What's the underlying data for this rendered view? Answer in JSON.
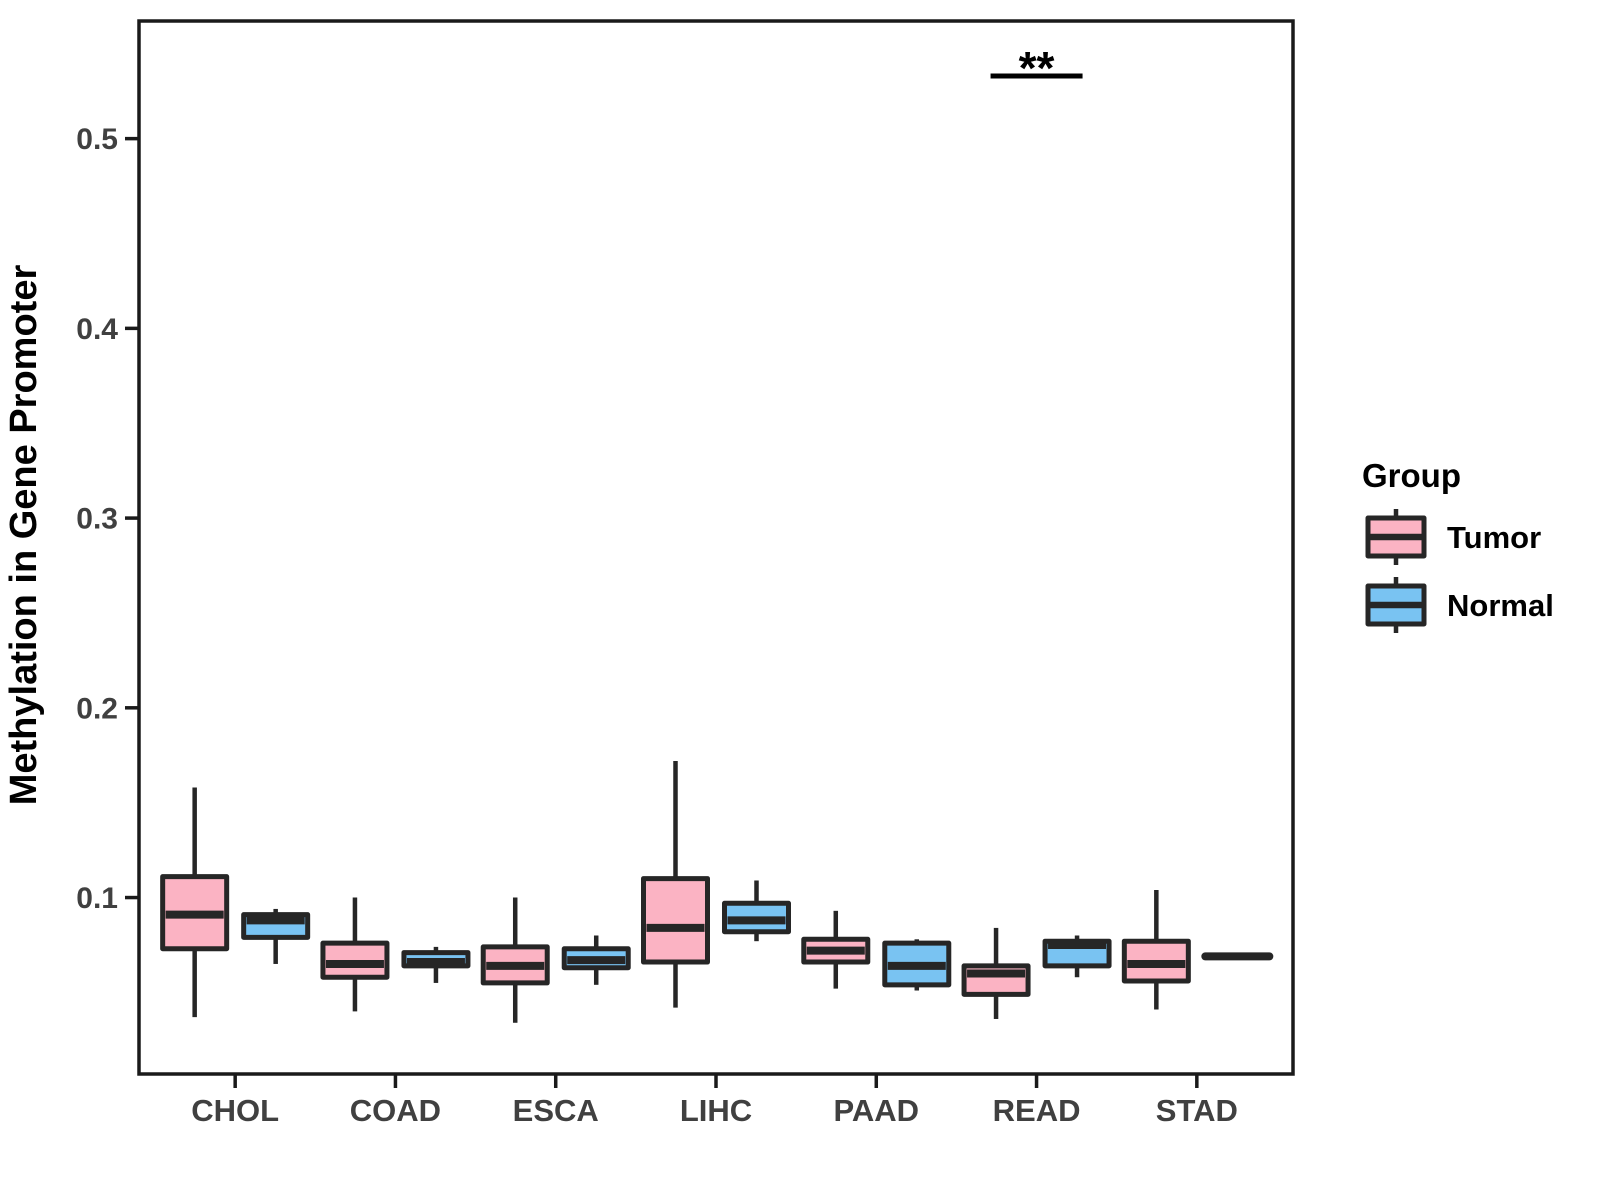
{
  "chart_data": {
    "type": "boxplot",
    "title": "",
    "xlabel": "",
    "ylabel": "Methylation in Gene Promoter",
    "categories": [
      "CHOL",
      "COAD",
      "ESCA",
      "LIHC",
      "PAAD",
      "READ",
      "STAD"
    ],
    "ylim": [
      0.007,
      0.562
    ],
    "yticks": [
      0.1,
      0.2,
      0.3,
      0.4,
      0.5
    ],
    "ytick_labels": [
      "0.1",
      "0.2",
      "0.3",
      "0.4",
      "0.5"
    ],
    "grid": false,
    "legend": {
      "title": "Group",
      "position": "right",
      "entries": [
        {
          "label": "Tumor",
          "color": "#FBB3C3"
        },
        {
          "label": "Normal",
          "color": "#79C3F2"
        }
      ]
    },
    "series": [
      {
        "name": "Tumor",
        "color": "#FBB3C3",
        "boxes": [
          {
            "category": "CHOL",
            "low": 0.037,
            "q1": 0.073,
            "median": 0.091,
            "q3": 0.111,
            "high": 0.158
          },
          {
            "category": "COAD",
            "low": 0.04,
            "q1": 0.058,
            "median": 0.065,
            "q3": 0.076,
            "high": 0.1
          },
          {
            "category": "ESCA",
            "low": 0.034,
            "q1": 0.055,
            "median": 0.064,
            "q3": 0.074,
            "high": 0.1
          },
          {
            "category": "LIHC",
            "low": 0.042,
            "q1": 0.066,
            "median": 0.084,
            "q3": 0.11,
            "high": 0.172
          },
          {
            "category": "PAAD",
            "low": 0.052,
            "q1": 0.066,
            "median": 0.072,
            "q3": 0.078,
            "high": 0.093
          },
          {
            "category": "READ",
            "low": 0.036,
            "q1": 0.049,
            "median": 0.06,
            "q3": 0.064,
            "high": 0.084
          },
          {
            "category": "STAD",
            "low": 0.041,
            "q1": 0.056,
            "median": 0.065,
            "q3": 0.077,
            "high": 0.104
          }
        ]
      },
      {
        "name": "Normal",
        "color": "#79C3F2",
        "boxes": [
          {
            "category": "CHOL",
            "low": 0.065,
            "q1": 0.079,
            "median": 0.088,
            "q3": 0.091,
            "high": 0.094
          },
          {
            "category": "COAD",
            "low": 0.055,
            "q1": 0.064,
            "median": 0.066,
            "q3": 0.071,
            "high": 0.074
          },
          {
            "category": "ESCA",
            "low": 0.054,
            "q1": 0.063,
            "median": 0.067,
            "q3": 0.073,
            "high": 0.08
          },
          {
            "category": "LIHC",
            "low": 0.077,
            "q1": 0.082,
            "median": 0.088,
            "q3": 0.097,
            "high": 0.109
          },
          {
            "category": "PAAD",
            "low": 0.051,
            "q1": 0.054,
            "median": 0.064,
            "q3": 0.076,
            "high": 0.078
          },
          {
            "category": "READ",
            "low": 0.058,
            "q1": 0.064,
            "median": 0.075,
            "q3": 0.077,
            "high": 0.08
          },
          {
            "category": "STAD",
            "low": 0.069,
            "q1": 0.069,
            "median": 0.069,
            "q3": 0.069,
            "high": 0.069
          }
        ]
      }
    ],
    "annotations": [
      {
        "text": "**",
        "category": "READ",
        "y": 0.533,
        "meaning": "significance"
      }
    ],
    "colors": {
      "box_outline": "#262626",
      "panel_border": "#1A1A1A",
      "axis_tick_text": "#404040",
      "axis_title_text": "#000000",
      "annotation_text": "#000000"
    }
  }
}
